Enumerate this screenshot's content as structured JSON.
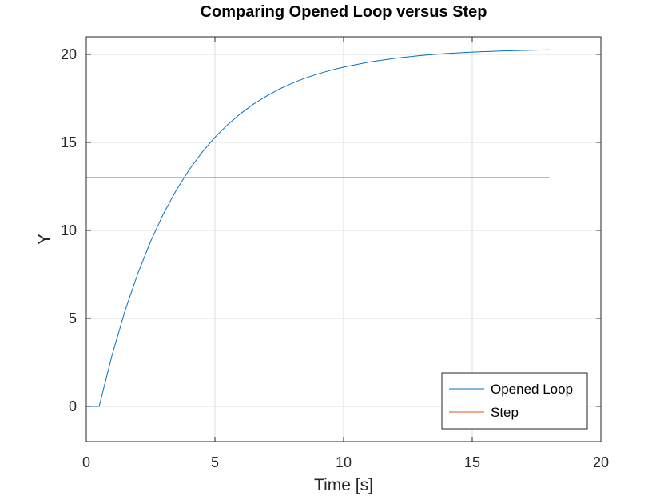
{
  "chart_data": {
    "type": "line",
    "title": "Comparing Opened Loop versus Step",
    "xlabel": "Time [s]",
    "ylabel": "Y",
    "xlim": [
      0,
      20
    ],
    "ylim": [
      -2,
      21
    ],
    "xticks": [
      0,
      5,
      10,
      15,
      20
    ],
    "yticks": [
      0,
      5,
      10,
      15,
      20
    ],
    "xtick_labels": [
      "0",
      "5",
      "10",
      "15",
      "20"
    ],
    "ytick_labels": [
      "0",
      "5",
      "10",
      "15",
      "20"
    ],
    "grid": true,
    "legend_position": "bottom-right",
    "series": [
      {
        "name": "Opened Loop",
        "color": "#0072BD",
        "x": [
          0,
          0.5,
          1,
          1.5,
          2,
          2.5,
          3,
          3.5,
          4,
          4.5,
          5,
          5.5,
          6,
          6.5,
          7,
          7.5,
          8,
          8.5,
          9,
          9.5,
          10,
          11,
          12,
          13,
          14,
          15,
          16,
          17,
          18
        ],
        "y": [
          0,
          0,
          2.91,
          5.41,
          7.54,
          9.38,
          10.95,
          12.29,
          13.45,
          14.44,
          15.29,
          16.02,
          16.64,
          17.18,
          17.63,
          18.03,
          18.36,
          18.65,
          18.89,
          19.1,
          19.28,
          19.57,
          19.78,
          19.94,
          20.05,
          20.13,
          20.19,
          20.23,
          20.26
        ]
      },
      {
        "name": "Step",
        "color": "#D95319",
        "x": [
          0,
          18
        ],
        "y": [
          13,
          13
        ]
      }
    ]
  }
}
